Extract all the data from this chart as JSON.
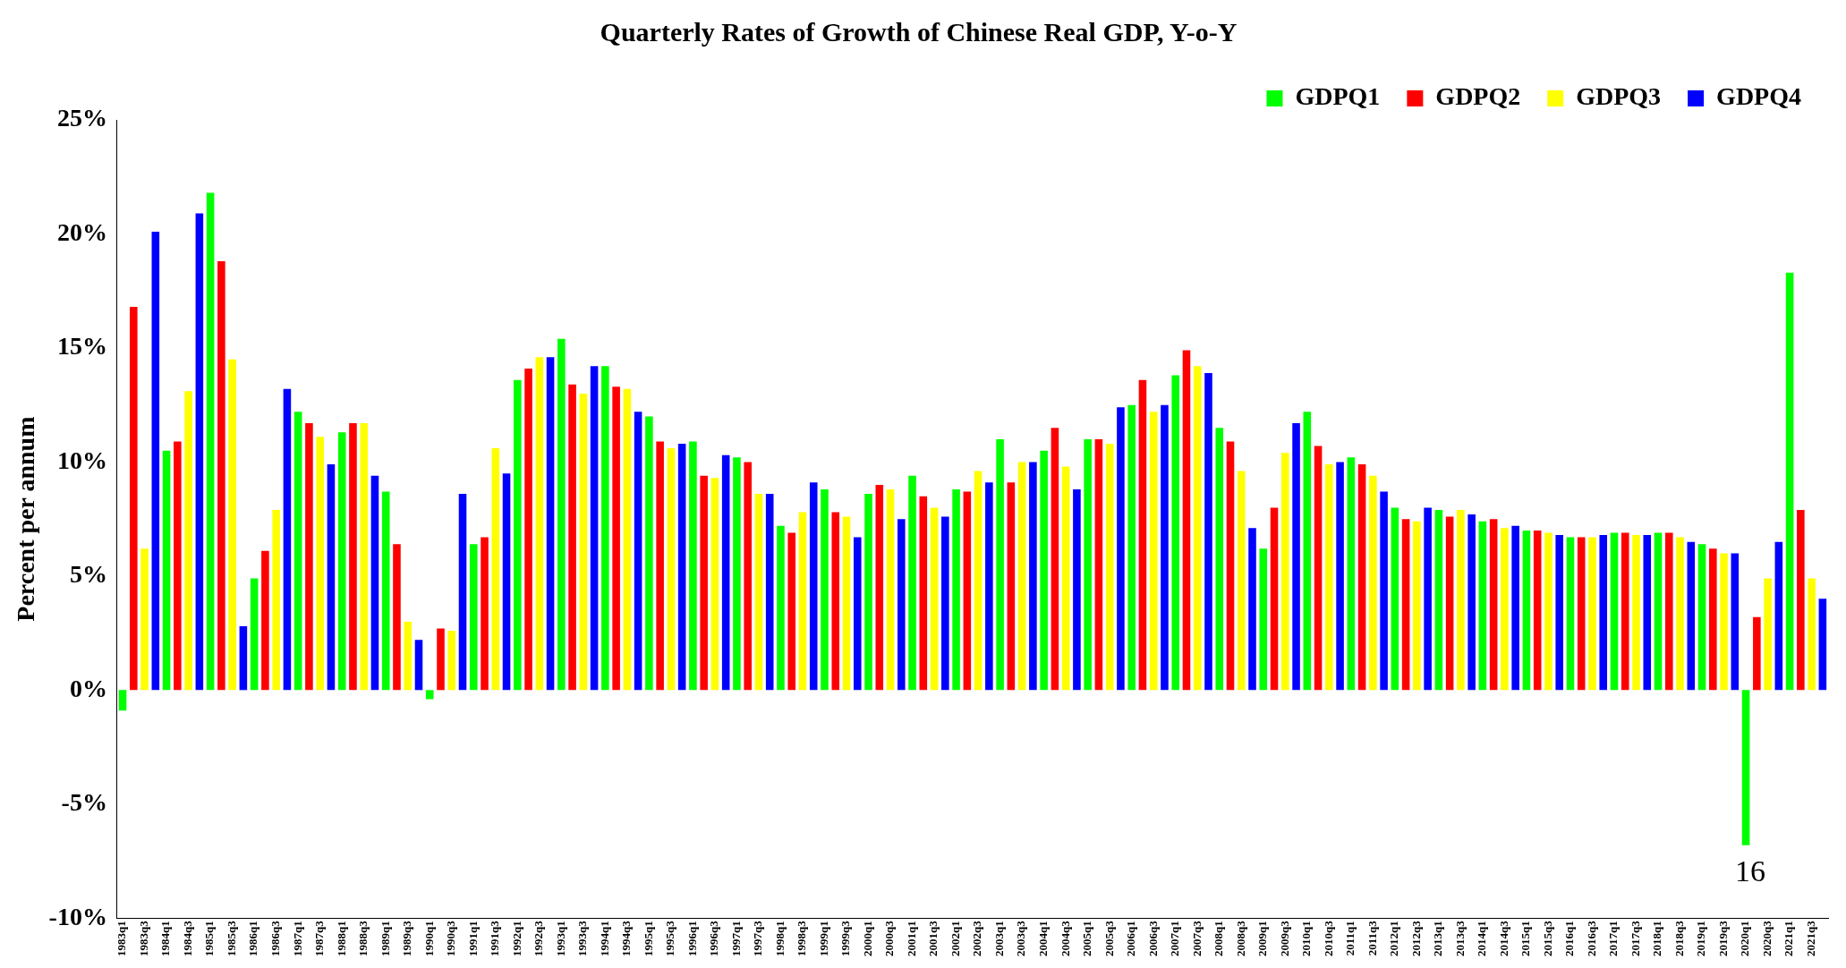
{
  "chart_data": {
    "type": "bar",
    "title": "Quarterly Rates of Growth of Chinese Real GDP, Y-o-Y",
    "ylabel": "Percent per annum",
    "annotations": [
      "16"
    ],
    "categories": [
      "1983q1",
      null,
      "1983q3",
      null,
      "1984q1",
      null,
      "1984q3",
      null,
      "1985q1",
      null,
      "1985q3",
      null,
      "1986q1",
      null,
      "1986q3",
      null,
      "1987q1",
      null,
      "1987q3",
      null,
      "1988q1",
      null,
      "1988q3",
      null,
      "1989q1",
      null,
      "1989q3",
      null,
      "1990q1",
      null,
      "1990q3",
      null,
      "1991q1",
      null,
      "1991q3",
      null,
      "1992q1",
      null,
      "1992q3",
      null,
      "1993q1",
      null,
      "1993q3",
      null,
      "1994q1",
      null,
      "1994q3",
      null,
      "1995q1",
      null,
      "1995q3",
      null,
      "1996q1",
      null,
      "1996q3",
      null,
      "1997q1",
      null,
      "1997q3",
      null,
      "1998q1",
      null,
      "1998q3",
      null,
      "1999q1",
      null,
      "1999q3",
      null,
      "2000q1",
      null,
      "2000q3",
      null,
      "2001q1",
      null,
      "2001q3",
      null,
      "2002q1",
      null,
      "2002q3",
      null,
      "2003q1",
      null,
      "2003q3",
      null,
      "2004q1",
      null,
      "2004q3",
      null,
      "2005q1",
      null,
      "2005q3",
      null,
      "2006q1",
      null,
      "2006q3",
      null,
      "2007q1",
      null,
      "2007q3",
      null,
      "2008q1",
      null,
      "2008q3",
      null,
      "2009q1",
      null,
      "2009q3",
      null,
      "2010q1",
      null,
      "2010q3",
      null,
      "2011q1",
      null,
      "2011q3",
      null,
      "2012q1",
      null,
      "2012q3",
      null,
      "2013q1",
      null,
      "2013q3",
      null,
      "2014q1",
      null,
      "2014q3",
      null,
      "2015q1",
      null,
      "2015q3",
      null,
      "2016q1",
      null,
      "2016q3",
      null,
      "2017q1",
      null,
      "2017q3",
      null,
      "2018q1",
      null,
      "2018q3",
      null,
      "2019q1",
      null,
      "2019q3",
      null,
      "2020q1",
      null,
      "2020q3",
      null,
      "2021q1",
      null,
      "2021q3",
      null
    ],
    "series": [
      {
        "name": "GDPQ1",
        "color": "#00ff00",
        "values": [
          -0.9,
          null,
          null,
          null,
          10.5,
          null,
          null,
          null,
          21.8,
          null,
          null,
          null,
          4.9,
          null,
          null,
          null,
          12.2,
          null,
          null,
          null,
          11.3,
          null,
          null,
          null,
          8.7,
          null,
          null,
          null,
          -0.4,
          null,
          null,
          null,
          6.4,
          null,
          null,
          null,
          13.6,
          null,
          null,
          null,
          15.4,
          null,
          null,
          null,
          14.2,
          null,
          null,
          null,
          12.0,
          null,
          null,
          null,
          10.9,
          null,
          null,
          null,
          10.2,
          null,
          null,
          null,
          7.2,
          null,
          null,
          null,
          8.8,
          null,
          null,
          null,
          8.6,
          null,
          null,
          null,
          9.4,
          null,
          null,
          null,
          8.8,
          null,
          null,
          null,
          11.0,
          null,
          null,
          null,
          10.5,
          null,
          null,
          null,
          11.0,
          null,
          null,
          null,
          12.5,
          null,
          null,
          null,
          13.8,
          null,
          null,
          null,
          11.5,
          null,
          null,
          null,
          6.2,
          null,
          null,
          null,
          12.2,
          null,
          null,
          null,
          10.2,
          null,
          null,
          null,
          8.0,
          null,
          null,
          null,
          7.9,
          null,
          null,
          null,
          7.4,
          null,
          null,
          null,
          7.0,
          null,
          null,
          null,
          6.7,
          null,
          null,
          null,
          6.9,
          null,
          null,
          null,
          6.9,
          null,
          null,
          null,
          6.4,
          null,
          null,
          null,
          -6.8,
          null,
          null,
          null,
          18.3,
          null,
          null,
          null
        ]
      },
      {
        "name": "GDPQ2",
        "color": "#ff0000",
        "values": [
          null,
          16.8,
          null,
          null,
          null,
          10.9,
          null,
          null,
          null,
          18.8,
          null,
          null,
          null,
          6.1,
          null,
          null,
          null,
          11.7,
          null,
          null,
          null,
          11.7,
          null,
          null,
          null,
          6.4,
          null,
          null,
          null,
          2.7,
          null,
          null,
          null,
          6.7,
          null,
          null,
          null,
          14.1,
          null,
          null,
          null,
          13.4,
          null,
          null,
          null,
          13.3,
          null,
          null,
          null,
          10.9,
          null,
          null,
          null,
          9.4,
          null,
          null,
          null,
          10.0,
          null,
          null,
          null,
          6.9,
          null,
          null,
          null,
          7.8,
          null,
          null,
          null,
          9.0,
          null,
          null,
          null,
          8.5,
          null,
          null,
          null,
          8.7,
          null,
          null,
          null,
          9.1,
          null,
          null,
          null,
          11.5,
          null,
          null,
          null,
          11.0,
          null,
          null,
          null,
          13.6,
          null,
          null,
          null,
          14.9,
          null,
          null,
          null,
          10.9,
          null,
          null,
          null,
          8.0,
          null,
          null,
          null,
          10.7,
          null,
          null,
          null,
          9.9,
          null,
          null,
          null,
          7.5,
          null,
          null,
          null,
          7.6,
          null,
          null,
          null,
          7.5,
          null,
          null,
          null,
          7.0,
          null,
          null,
          null,
          6.7,
          null,
          null,
          null,
          6.9,
          null,
          null,
          null,
          6.9,
          null,
          null,
          null,
          6.2,
          null,
          null,
          null,
          3.2,
          null,
          null,
          null,
          7.9,
          null,
          null
        ]
      },
      {
        "name": "GDPQ3",
        "color": "#ffff00",
        "values": [
          null,
          null,
          6.2,
          null,
          null,
          null,
          13.1,
          null,
          null,
          null,
          14.5,
          null,
          null,
          null,
          7.9,
          null,
          null,
          null,
          11.1,
          null,
          null,
          null,
          11.7,
          null,
          null,
          null,
          3.0,
          null,
          null,
          null,
          2.6,
          null,
          null,
          null,
          10.6,
          null,
          null,
          null,
          14.6,
          null,
          null,
          null,
          13.0,
          null,
          null,
          null,
          13.2,
          null,
          null,
          null,
          10.6,
          null,
          null,
          null,
          9.3,
          null,
          null,
          null,
          8.6,
          null,
          null,
          null,
          7.8,
          null,
          null,
          null,
          7.6,
          null,
          null,
          null,
          8.8,
          null,
          null,
          null,
          8.0,
          null,
          null,
          null,
          9.6,
          null,
          null,
          null,
          10.0,
          null,
          null,
          null,
          9.8,
          null,
          null,
          null,
          10.8,
          null,
          null,
          null,
          12.2,
          null,
          null,
          null,
          14.2,
          null,
          null,
          null,
          9.6,
          null,
          null,
          null,
          10.4,
          null,
          null,
          null,
          9.9,
          null,
          null,
          null,
          9.4,
          null,
          null,
          null,
          7.4,
          null,
          null,
          null,
          7.9,
          null,
          null,
          null,
          7.1,
          null,
          null,
          null,
          6.9,
          null,
          null,
          null,
          6.7,
          null,
          null,
          null,
          6.8,
          null,
          null,
          null,
          6.7,
          null,
          null,
          null,
          6.0,
          null,
          null,
          null,
          4.9,
          null,
          null,
          null,
          4.9,
          null
        ]
      },
      {
        "name": "GDPQ4",
        "color": "#0000ff",
        "values": [
          null,
          null,
          null,
          20.1,
          null,
          null,
          null,
          20.9,
          null,
          null,
          null,
          2.8,
          null,
          null,
          null,
          13.2,
          null,
          null,
          null,
          9.9,
          null,
          null,
          null,
          9.4,
          null,
          null,
          null,
          2.2,
          null,
          null,
          null,
          8.6,
          null,
          null,
          null,
          9.5,
          null,
          null,
          null,
          14.6,
          null,
          null,
          null,
          14.2,
          null,
          null,
          null,
          12.2,
          null,
          null,
          null,
          10.8,
          null,
          null,
          null,
          10.3,
          null,
          null,
          null,
          8.6,
          null,
          null,
          null,
          9.1,
          null,
          null,
          null,
          6.7,
          null,
          null,
          null,
          7.5,
          null,
          null,
          null,
          7.6,
          null,
          null,
          null,
          9.1,
          null,
          null,
          null,
          10.0,
          null,
          null,
          null,
          8.8,
          null,
          null,
          null,
          12.4,
          null,
          null,
          null,
          12.5,
          null,
          null,
          null,
          13.9,
          null,
          null,
          null,
          7.1,
          null,
          null,
          null,
          11.7,
          null,
          null,
          null,
          10.0,
          null,
          null,
          null,
          8.7,
          null,
          null,
          null,
          8.0,
          null,
          null,
          null,
          7.7,
          null,
          null,
          null,
          7.2,
          null,
          null,
          null,
          6.8,
          null,
          null,
          null,
          6.8,
          null,
          null,
          null,
          6.8,
          null,
          null,
          null,
          6.5,
          null,
          null,
          null,
          6.0,
          null,
          null,
          null,
          6.5,
          null,
          null,
          null,
          4.0
        ]
      }
    ],
    "ylim": [
      -10,
      25
    ],
    "yticks": [
      {
        "value": -10,
        "label": "-10%"
      },
      {
        "value": -5,
        "label": "-5%"
      },
      {
        "value": 0,
        "label": "0%"
      },
      {
        "value": 5,
        "label": "5%"
      },
      {
        "value": 10,
        "label": "10%"
      },
      {
        "value": 15,
        "label": "15%"
      },
      {
        "value": 20,
        "label": "20%"
      },
      {
        "value": 25,
        "label": "25%"
      }
    ],
    "grid": false,
    "legend": "top right"
  }
}
